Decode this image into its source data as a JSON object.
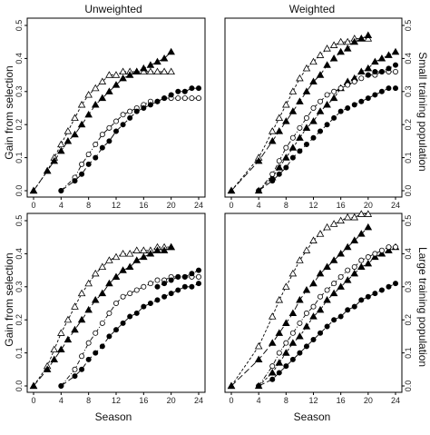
{
  "figure": {
    "column_titles": [
      "Unweighted",
      "Weighted"
    ],
    "row_titles": [
      "Small training population",
      "Large training population"
    ],
    "xlabel": "Season",
    "ylabel": "Gain from selection"
  },
  "chart_data": [
    {
      "type": "line",
      "panel": "Unweighted / Small training population",
      "xlim": [
        0,
        24
      ],
      "ylim": [
        0,
        0.5
      ],
      "xticks": [
        0,
        4,
        8,
        12,
        16,
        20,
        24
      ],
      "yticks": [
        0.0,
        0.1,
        0.2,
        0.3,
        0.4,
        0.5
      ],
      "series": [
        {
          "marker": "open-triangle",
          "line": "dashed",
          "x": [
            0,
            2,
            3,
            4,
            5,
            6,
            7,
            8,
            9,
            10,
            11,
            12,
            13,
            14,
            15,
            16,
            17,
            18,
            19,
            20
          ],
          "y": [
            0,
            0.06,
            0.1,
            0.14,
            0.18,
            0.22,
            0.26,
            0.29,
            0.31,
            0.33,
            0.35,
            0.35,
            0.36,
            0.36,
            0.36,
            0.36,
            0.36,
            0.36,
            0.36,
            0.36
          ]
        },
        {
          "marker": "filled-triangle",
          "line": "long-dash",
          "x": [
            0,
            2,
            3,
            4,
            5,
            6,
            7,
            8,
            9,
            10,
            11,
            12,
            13,
            14,
            15,
            16,
            17,
            18,
            19,
            20
          ],
          "y": [
            0,
            0.06,
            0.09,
            0.12,
            0.15,
            0.17,
            0.2,
            0.23,
            0.26,
            0.28,
            0.3,
            0.32,
            0.34,
            0.35,
            0.36,
            0.37,
            0.38,
            0.39,
            0.4,
            0.42
          ]
        },
        {
          "marker": "open-circle",
          "line": "dash-dot",
          "x": [
            4,
            6,
            7,
            8,
            9,
            10,
            11,
            12,
            13,
            14,
            15,
            16,
            17,
            18,
            19,
            20,
            21,
            22,
            23,
            24
          ],
          "y": [
            0,
            0.04,
            0.08,
            0.11,
            0.14,
            0.17,
            0.19,
            0.21,
            0.23,
            0.24,
            0.25,
            0.26,
            0.27,
            0.27,
            0.28,
            0.28,
            0.28,
            0.28,
            0.28,
            0.28
          ]
        },
        {
          "marker": "filled-circle",
          "line": "long-dash",
          "x": [
            4,
            6,
            7,
            8,
            9,
            10,
            11,
            12,
            13,
            14,
            15,
            16,
            17,
            18,
            19,
            20,
            21,
            22,
            23,
            24
          ],
          "y": [
            0,
            0.03,
            0.05,
            0.08,
            0.1,
            0.13,
            0.15,
            0.18,
            0.2,
            0.22,
            0.24,
            0.25,
            0.26,
            0.27,
            0.28,
            0.29,
            0.3,
            0.3,
            0.31,
            0.31
          ]
        }
      ]
    },
    {
      "type": "line",
      "panel": "Weighted / Small training population",
      "xlim": [
        0,
        24
      ],
      "ylim": [
        0,
        0.5
      ],
      "xticks": [
        0,
        4,
        8,
        12,
        16,
        20,
        24
      ],
      "yticks": [
        0.0,
        0.1,
        0.2,
        0.3,
        0.4,
        0.5
      ],
      "series": [
        {
          "marker": "open-triangle",
          "line": "dashed",
          "x": [
            0,
            4,
            6,
            7,
            8,
            9,
            10,
            11,
            12,
            13,
            14,
            15,
            16,
            17,
            18,
            19,
            20
          ],
          "y": [
            0,
            0.1,
            0.18,
            0.22,
            0.26,
            0.3,
            0.34,
            0.37,
            0.39,
            0.41,
            0.43,
            0.44,
            0.45,
            0.45,
            0.46,
            0.46,
            0.46
          ]
        },
        {
          "marker": "filled-triangle",
          "line": "long-dash",
          "x": [
            0,
            4,
            6,
            7,
            8,
            9,
            10,
            11,
            12,
            13,
            14,
            15,
            16,
            17,
            18,
            19,
            20
          ],
          "y": [
            0,
            0.09,
            0.15,
            0.18,
            0.21,
            0.24,
            0.27,
            0.3,
            0.33,
            0.35,
            0.38,
            0.4,
            0.42,
            0.43,
            0.45,
            0.46,
            0.47
          ]
        },
        {
          "marker": "filled-triangle",
          "line": "dashed",
          "x": [
            4,
            6,
            7,
            8,
            9,
            10,
            11,
            12,
            13,
            14,
            15,
            16,
            17,
            18,
            19,
            20,
            21,
            22,
            23,
            24
          ],
          "y": [
            0,
            0.04,
            0.07,
            0.1,
            0.13,
            0.16,
            0.19,
            0.21,
            0.24,
            0.26,
            0.28,
            0.31,
            0.33,
            0.34,
            0.36,
            0.37,
            0.39,
            0.4,
            0.41,
            0.42
          ]
        },
        {
          "marker": "open-circle",
          "line": "dash-dot",
          "x": [
            4,
            6,
            7,
            8,
            9,
            10,
            11,
            12,
            13,
            14,
            15,
            16,
            17,
            18,
            19,
            20,
            21,
            22,
            23,
            24
          ],
          "y": [
            0,
            0.05,
            0.09,
            0.13,
            0.16,
            0.19,
            0.22,
            0.25,
            0.27,
            0.29,
            0.3,
            0.31,
            0.32,
            0.33,
            0.34,
            0.35,
            0.35,
            0.36,
            0.36,
            0.36
          ]
        },
        {
          "marker": "filled-circle",
          "line": "long-dash",
          "x": [
            4,
            6,
            7,
            8,
            9,
            10,
            11,
            12,
            13,
            14,
            15,
            16,
            17,
            18,
            19,
            20,
            21,
            22,
            23,
            24
          ],
          "y": [
            0,
            0.03,
            0.05,
            0.07,
            0.1,
            0.12,
            0.14,
            0.16,
            0.18,
            0.2,
            0.22,
            0.24,
            0.25,
            0.26,
            0.27,
            0.28,
            0.29,
            0.3,
            0.31,
            0.31
          ]
        },
        {
          "marker": "filled-circle",
          "line": "dashed",
          "x": [
            20,
            21,
            22,
            23,
            24
          ],
          "y": [
            0.35,
            0.36,
            0.36,
            0.37,
            0.38
          ]
        }
      ]
    },
    {
      "type": "line",
      "panel": "Unweighted / Large training population",
      "xlim": [
        0,
        24
      ],
      "ylim": [
        0,
        0.5
      ],
      "xticks": [
        0,
        4,
        8,
        12,
        16,
        20,
        24
      ],
      "yticks": [
        0.0,
        0.1,
        0.2,
        0.3,
        0.4,
        0.5
      ],
      "series": [
        {
          "marker": "open-triangle",
          "line": "dashed",
          "x": [
            0,
            2,
            3,
            4,
            5,
            6,
            7,
            8,
            9,
            10,
            11,
            12,
            13,
            14,
            15,
            16,
            17,
            18,
            19,
            20
          ],
          "y": [
            0,
            0.06,
            0.11,
            0.16,
            0.2,
            0.24,
            0.28,
            0.31,
            0.34,
            0.36,
            0.38,
            0.39,
            0.4,
            0.4,
            0.41,
            0.41,
            0.41,
            0.42,
            0.42,
            0.42
          ]
        },
        {
          "marker": "filled-triangle",
          "line": "long-dash",
          "x": [
            0,
            2,
            3,
            4,
            5,
            6,
            7,
            8,
            9,
            10,
            11,
            12,
            13,
            14,
            15,
            16,
            17,
            18,
            19,
            20
          ],
          "y": [
            0,
            0.05,
            0.08,
            0.11,
            0.14,
            0.17,
            0.2,
            0.23,
            0.26,
            0.28,
            0.31,
            0.33,
            0.35,
            0.36,
            0.38,
            0.39,
            0.4,
            0.41,
            0.41,
            0.42
          ]
        },
        {
          "marker": "open-circle",
          "line": "dash-dot",
          "x": [
            4,
            6,
            7,
            8,
            9,
            10,
            11,
            12,
            13,
            14,
            15,
            16,
            17,
            18,
            19,
            20,
            21,
            22,
            23,
            24
          ],
          "y": [
            0,
            0.05,
            0.09,
            0.13,
            0.16,
            0.19,
            0.22,
            0.25,
            0.27,
            0.28,
            0.29,
            0.3,
            0.31,
            0.32,
            0.32,
            0.33,
            0.33,
            0.33,
            0.33,
            0.33
          ]
        },
        {
          "marker": "filled-circle",
          "line": "long-dash",
          "x": [
            4,
            6,
            7,
            8,
            9,
            10,
            11,
            12,
            13,
            14,
            15,
            16,
            17,
            18,
            19,
            20,
            21,
            22,
            23,
            24
          ],
          "y": [
            0,
            0.03,
            0.05,
            0.08,
            0.1,
            0.12,
            0.15,
            0.17,
            0.19,
            0.21,
            0.22,
            0.24,
            0.25,
            0.26,
            0.27,
            0.28,
            0.29,
            0.3,
            0.3,
            0.31
          ]
        },
        {
          "marker": "filled-circle",
          "line": "dashed",
          "x": [
            18,
            19,
            20,
            21,
            22,
            23,
            24
          ],
          "y": [
            0.3,
            0.31,
            0.32,
            0.33,
            0.33,
            0.34,
            0.35
          ]
        }
      ]
    },
    {
      "type": "line",
      "panel": "Weighted / Large training population",
      "xlim": [
        0,
        24
      ],
      "ylim": [
        0,
        0.5
      ],
      "xticks": [
        0,
        4,
        8,
        12,
        16,
        20,
        24
      ],
      "yticks": [
        0.0,
        0.1,
        0.2,
        0.3,
        0.4,
        0.5
      ],
      "series": [
        {
          "marker": "open-triangle",
          "line": "dashed",
          "x": [
            0,
            4,
            6,
            7,
            8,
            9,
            10,
            11,
            12,
            13,
            14,
            15,
            16,
            17,
            18,
            19,
            20
          ],
          "y": [
            0,
            0.12,
            0.21,
            0.26,
            0.3,
            0.34,
            0.38,
            0.41,
            0.44,
            0.46,
            0.48,
            0.49,
            0.5,
            0.51,
            0.51,
            0.52,
            0.52
          ]
        },
        {
          "marker": "filled-triangle",
          "line": "long-dash",
          "x": [
            0,
            4,
            6,
            7,
            8,
            9,
            10,
            11,
            12,
            13,
            14,
            15,
            16,
            17,
            18,
            19,
            20
          ],
          "y": [
            0,
            0.08,
            0.13,
            0.16,
            0.19,
            0.22,
            0.26,
            0.29,
            0.31,
            0.34,
            0.36,
            0.38,
            0.4,
            0.42,
            0.44,
            0.46,
            0.48
          ]
        },
        {
          "marker": "filled-triangle",
          "line": "dashed",
          "x": [
            4,
            6,
            7,
            8,
            9,
            10,
            11,
            12,
            13,
            14,
            15,
            16,
            17,
            18,
            19,
            20,
            21,
            22,
            23,
            24
          ],
          "y": [
            0,
            0.04,
            0.07,
            0.1,
            0.13,
            0.15,
            0.18,
            0.21,
            0.23,
            0.26,
            0.28,
            0.3,
            0.32,
            0.34,
            0.36,
            0.37,
            0.39,
            0.4,
            0.41,
            0.42
          ]
        },
        {
          "marker": "open-circle",
          "line": "dash-dot",
          "x": [
            4,
            6,
            7,
            8,
            9,
            10,
            11,
            12,
            13,
            14,
            15,
            16,
            17,
            18,
            19,
            20,
            21,
            22,
            23,
            24
          ],
          "y": [
            0,
            0.06,
            0.1,
            0.13,
            0.16,
            0.19,
            0.22,
            0.24,
            0.27,
            0.29,
            0.31,
            0.33,
            0.35,
            0.36,
            0.38,
            0.39,
            0.4,
            0.41,
            0.42,
            0.42
          ]
        },
        {
          "marker": "filled-circle",
          "line": "long-dash",
          "x": [
            4,
            6,
            7,
            8,
            9,
            10,
            11,
            12,
            13,
            14,
            15,
            16,
            17,
            18,
            19,
            20,
            21,
            22,
            23,
            24
          ],
          "y": [
            0,
            0.02,
            0.04,
            0.06,
            0.08,
            0.1,
            0.12,
            0.14,
            0.16,
            0.18,
            0.2,
            0.21,
            0.23,
            0.24,
            0.26,
            0.27,
            0.28,
            0.29,
            0.3,
            0.31
          ]
        }
      ]
    }
  ]
}
